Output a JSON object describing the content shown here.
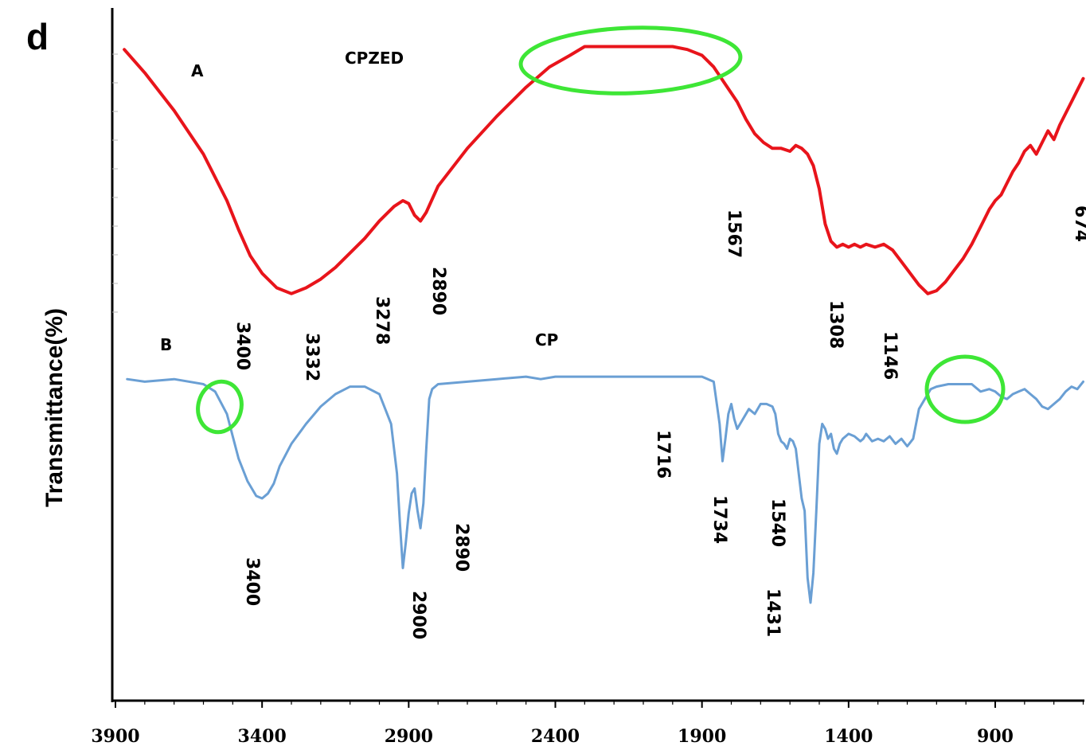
{
  "figure": {
    "panel_label": "d",
    "ylabel": "Transmittance(%)"
  },
  "chart_data": {
    "type": "line",
    "title": "",
    "xlabel": "",
    "ylabel": "Transmittance(%)",
    "xlim": [
      3900,
      600
    ],
    "x_reversed": true,
    "x_ticks": [
      3900,
      3400,
      2900,
      2400,
      1900,
      1400,
      900
    ],
    "grid": false,
    "legend": "none",
    "series": [
      {
        "name": "CPZED",
        "panel_tag": "A",
        "color": "#e8141b",
        "x": [
          3870,
          3800,
          3700,
          3600,
          3520,
          3480,
          3440,
          3400,
          3350,
          3300,
          3250,
          3200,
          3150,
          3100,
          3050,
          3000,
          2950,
          2920,
          2900,
          2880,
          2860,
          2840,
          2800,
          2700,
          2600,
          2500,
          2420,
          2350,
          2300,
          2250,
          2200,
          2100,
          2000,
          1950,
          1900,
          1860,
          1820,
          1780,
          1750,
          1720,
          1690,
          1660,
          1630,
          1600,
          1580,
          1560,
          1540,
          1520,
          1500,
          1480,
          1460,
          1440,
          1420,
          1400,
          1380,
          1360,
          1340,
          1310,
          1280,
          1250,
          1220,
          1190,
          1160,
          1130,
          1100,
          1070,
          1040,
          1010,
          980,
          950,
          920,
          900,
          880,
          860,
          840,
          820,
          800,
          780,
          760,
          740,
          720,
          700,
          680,
          660,
          640,
          620,
          600
        ],
        "y": [
          92,
          84,
          71,
          56,
          40,
          30,
          21,
          15,
          10,
          8,
          10,
          13,
          17,
          22,
          27,
          33,
          38,
          40,
          39,
          35,
          33,
          36,
          45,
          58,
          69,
          79,
          86,
          90,
          93,
          93,
          93,
          93,
          93,
          92,
          90,
          86,
          80,
          74,
          68,
          63,
          60,
          58,
          58,
          57,
          59,
          58,
          56,
          52,
          44,
          32,
          26,
          24,
          25,
          24,
          25,
          24,
          25,
          24,
          25,
          23,
          19,
          15,
          11,
          8,
          9,
          12,
          16,
          20,
          25,
          31,
          37,
          40,
          42,
          46,
          50,
          53,
          57,
          59,
          56,
          60,
          64,
          61,
          66,
          70,
          74,
          78,
          82
        ]
      },
      {
        "name": "CP",
        "panel_tag": "B",
        "color": "#6a9fd4",
        "x": [
          3860,
          3800,
          3700,
          3600,
          3560,
          3520,
          3500,
          3480,
          3450,
          3420,
          3400,
          3380,
          3360,
          3340,
          3300,
          3250,
          3200,
          3150,
          3100,
          3050,
          3000,
          2960,
          2940,
          2930,
          2920,
          2910,
          2900,
          2890,
          2880,
          2870,
          2860,
          2850,
          2840,
          2830,
          2820,
          2800,
          2700,
          2600,
          2500,
          2450,
          2400,
          2300,
          2200,
          2100,
          2000,
          1900,
          1860,
          1840,
          1830,
          1820,
          1810,
          1800,
          1790,
          1780,
          1760,
          1740,
          1720,
          1700,
          1680,
          1660,
          1650,
          1640,
          1630,
          1620,
          1610,
          1600,
          1590,
          1580,
          1560,
          1550,
          1540,
          1530,
          1520,
          1510,
          1500,
          1490,
          1480,
          1470,
          1460,
          1450,
          1440,
          1430,
          1420,
          1400,
          1380,
          1360,
          1350,
          1340,
          1320,
          1300,
          1280,
          1260,
          1240,
          1220,
          1200,
          1180,
          1160,
          1140,
          1120,
          1100,
          1060,
          1020,
          980,
          950,
          920,
          900,
          880,
          860,
          840,
          820,
          800,
          780,
          760,
          740,
          720,
          700,
          680,
          660,
          640,
          620,
          600
        ],
        "y": [
          98,
          97,
          98,
          96,
          93,
          84,
          75,
          66,
          57,
          51,
          50,
          52,
          56,
          63,
          72,
          80,
          87,
          92,
          95,
          95,
          92,
          80,
          60,
          40,
          22,
          32,
          44,
          52,
          54,
          45,
          38,
          48,
          70,
          90,
          94,
          96,
          97,
          98,
          99,
          98,
          99,
          99,
          99,
          99,
          99,
          99,
          97,
          80,
          65,
          74,
          84,
          88,
          82,
          78,
          82,
          86,
          84,
          88,
          88,
          87,
          84,
          76,
          73,
          72,
          70,
          74,
          73,
          70,
          50,
          45,
          18,
          8,
          20,
          45,
          72,
          80,
          78,
          74,
          76,
          70,
          68,
          72,
          74,
          76,
          75,
          73,
          74,
          76,
          73,
          74,
          73,
          75,
          72,
          74,
          71,
          74,
          86,
          90,
          94,
          95,
          96,
          96,
          96,
          93,
          94,
          93,
          91,
          90,
          92,
          93,
          94,
          92,
          90,
          87,
          86,
          88,
          90,
          93,
          95,
          94,
          97
        ]
      }
    ],
    "series_tags": [
      "A",
      "B"
    ],
    "annotations": {
      "A": [
        "3400",
        "3332",
        "3278",
        "2890",
        "1567",
        "1308",
        "1146",
        "674"
      ],
      "B": [
        "3400",
        "2900",
        "2890",
        "1716",
        "1734",
        "1540",
        "1431"
      ]
    },
    "highlights": [
      {
        "series": "A",
        "x_range": [
          2550,
          1800
        ]
      },
      {
        "series": "B",
        "x_range": [
          3540,
          3440
        ]
      },
      {
        "series": "B",
        "x_range": [
          1130,
          880
        ]
      }
    ]
  }
}
